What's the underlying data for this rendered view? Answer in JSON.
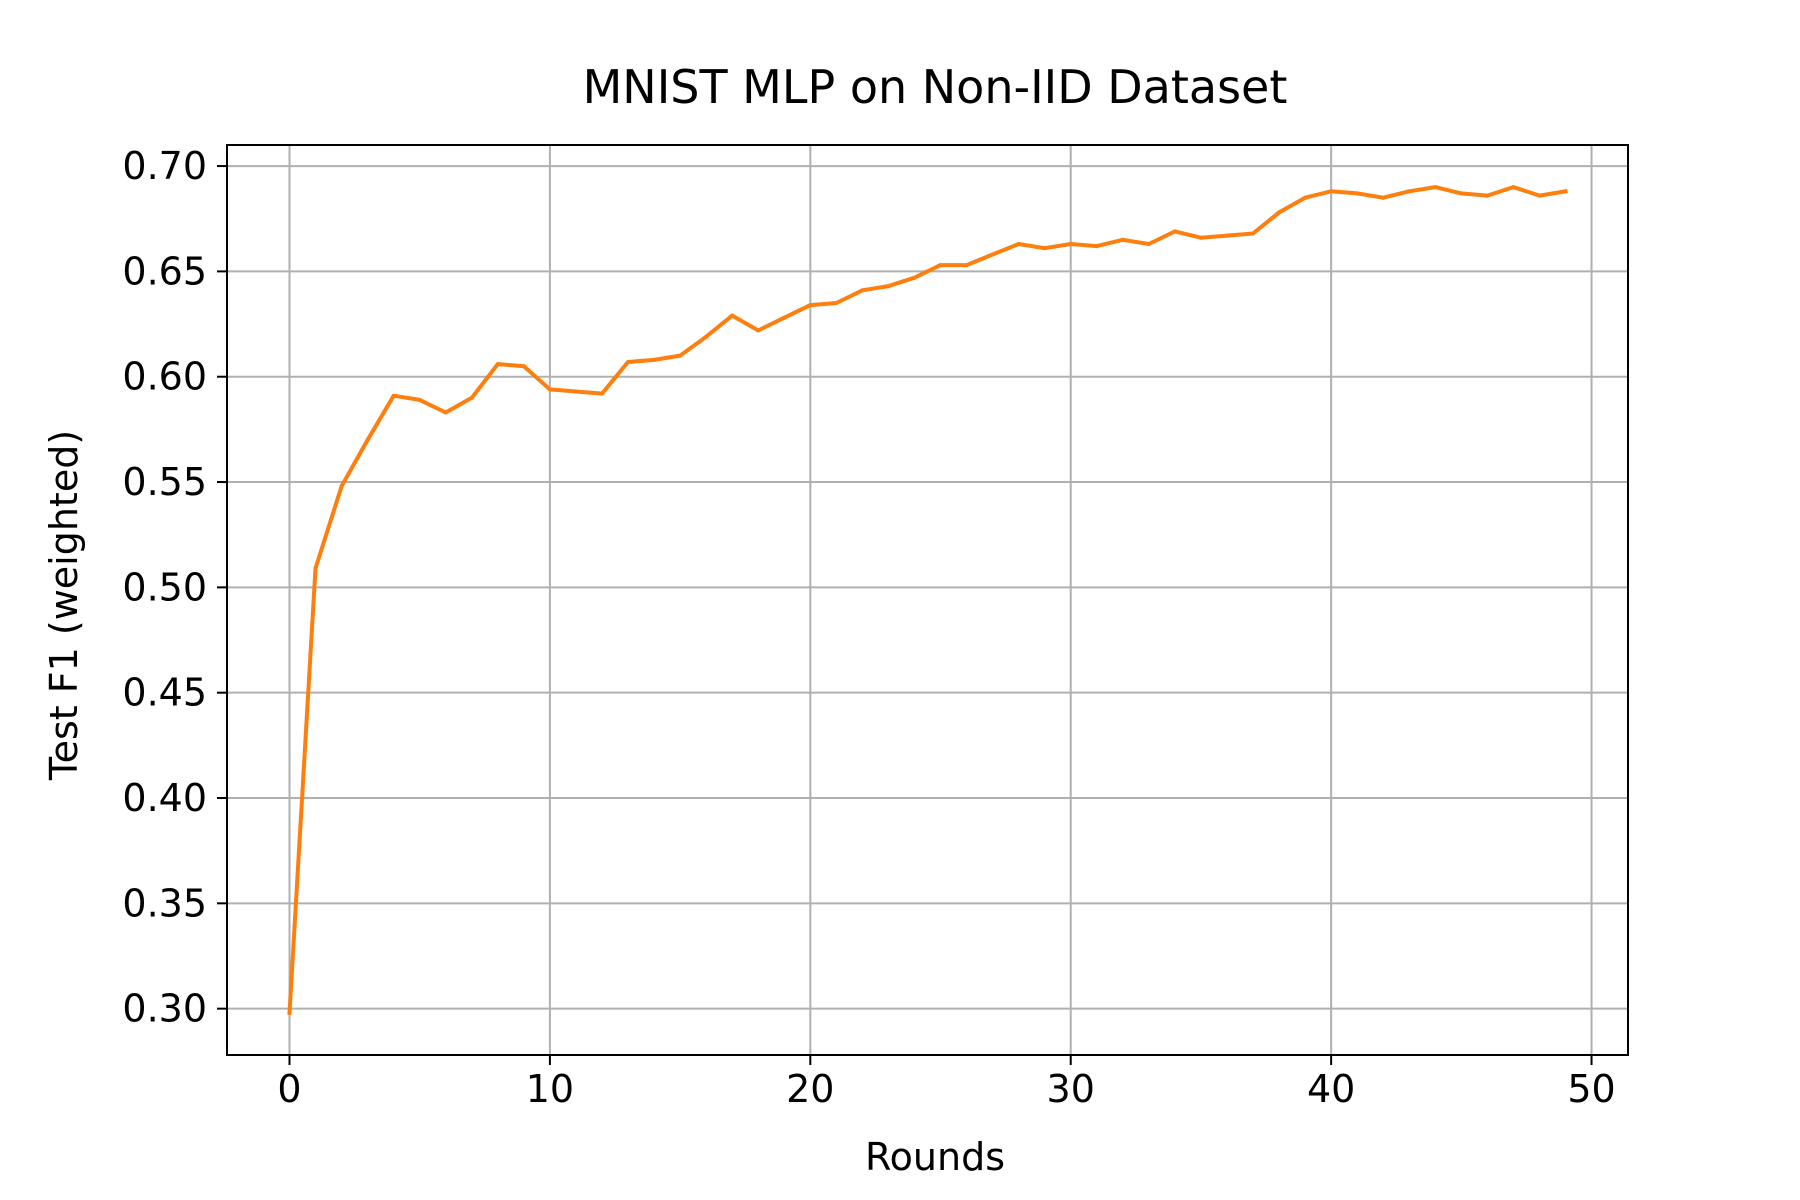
{
  "chart_data": {
    "type": "line",
    "title": "MNIST MLP on Non-IID Dataset",
    "xlabel": "Rounds",
    "ylabel": "Test F1 (weighted)",
    "xlim": [
      -2.4,
      51.4
    ],
    "ylim": [
      0.278,
      0.71
    ],
    "xticks": [
      0,
      10,
      20,
      30,
      40,
      50
    ],
    "xtick_labels": [
      "0",
      "10",
      "20",
      "30",
      "40",
      "50"
    ],
    "yticks": [
      0.3,
      0.35,
      0.4,
      0.45,
      0.5,
      0.55,
      0.6,
      0.65,
      0.7
    ],
    "ytick_labels": [
      "0.30",
      "0.35",
      "0.40",
      "0.45",
      "0.50",
      "0.55",
      "0.60",
      "0.65",
      "0.70"
    ],
    "grid": true,
    "legend": false,
    "colors": {
      "line": "#ff7f0e",
      "grid": "#b0b0b0",
      "axes": "#000000"
    },
    "series": [
      {
        "x": [
          0,
          1,
          2,
          3,
          4,
          5,
          6,
          7,
          8,
          9,
          10,
          11,
          12,
          13,
          14,
          15,
          16,
          17,
          18,
          19,
          20,
          21,
          22,
          23,
          24,
          25,
          26,
          27,
          28,
          29,
          30,
          31,
          32,
          33,
          34,
          35,
          36,
          37,
          38,
          39,
          40,
          41,
          42,
          43,
          44,
          45,
          46,
          47,
          48,
          49
        ],
        "values": [
          0.298,
          0.509,
          0.548,
          0.57,
          0.591,
          0.589,
          0.583,
          0.59,
          0.606,
          0.605,
          0.594,
          0.593,
          0.592,
          0.607,
          0.608,
          0.61,
          0.619,
          0.629,
          0.622,
          0.628,
          0.634,
          0.635,
          0.641,
          0.643,
          0.647,
          0.653,
          0.653,
          0.658,
          0.663,
          0.661,
          0.663,
          0.662,
          0.665,
          0.663,
          0.669,
          0.666,
          0.667,
          0.668,
          0.678,
          0.685,
          0.688,
          0.687,
          0.685,
          0.688,
          0.69,
          0.687,
          0.686,
          0.69,
          0.686,
          0.688
        ]
      }
    ]
  }
}
